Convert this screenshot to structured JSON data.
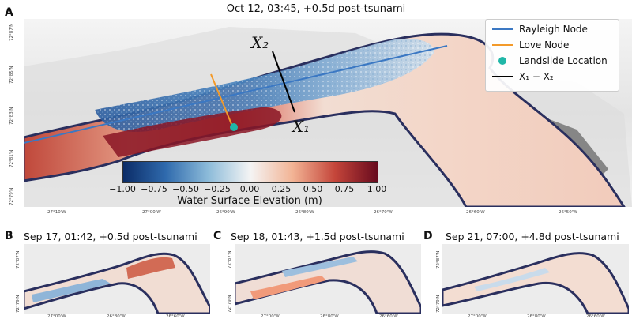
{
  "panel_a": {
    "letter": "A",
    "title": "Oct 12, 03:45, +0.5d post-tsunami",
    "legend": [
      {
        "label": "Rayleigh Node",
        "color": "#3b78c3",
        "kind": "line"
      },
      {
        "label": "Love Node",
        "color": "#f39a2a",
        "kind": "line"
      },
      {
        "label": "Landslide Location",
        "color": "#20b7a8",
        "kind": "dot"
      },
      {
        "label": "X₁ − X₂",
        "color": "#000000",
        "kind": "line"
      }
    ],
    "map_labels": {
      "x1": "X₁",
      "x2": "X₂"
    },
    "x_ticks": [
      "27°10'W",
      "27°00'W",
      "26°90'W",
      "26°80'W",
      "26°70'W",
      "26°60'W",
      "26°50'W"
    ],
    "y_ticks": [
      "72°87'N",
      "72°85'N",
      "72°83'N",
      "72°81'N",
      "72°79'N"
    ],
    "colorbar": {
      "ticks": [
        "−1.00",
        "−0.75",
        "−0.50",
        "−0.25",
        "0.00",
        "0.25",
        "0.50",
        "0.75",
        "1.00"
      ],
      "label": "Water Surface Elevation (m)",
      "colors": [
        "#0b2c67",
        "#2f6aad",
        "#8cbbd9",
        "#f4f4f4",
        "#f2b394",
        "#c4453a",
        "#680a1e"
      ]
    }
  },
  "panel_b": {
    "letter": "B",
    "title": "Sep 17, 01:42, +0.5d post-tsunami",
    "x_ticks": [
      "27°00'W",
      "26°80'W",
      "26°60'W"
    ],
    "y_ticks": [
      "72°87'N",
      "72°79'N"
    ]
  },
  "panel_c": {
    "letter": "C",
    "title": "Sep 18, 01:43, +1.5d post-tsunami",
    "x_ticks": [
      "27°00'W",
      "26°80'W",
      "26°60'W"
    ],
    "y_ticks": [
      "72°87'N",
      "72°79'N"
    ]
  },
  "panel_d": {
    "letter": "D",
    "title": "Sep 21, 07:00, +4.8d post-tsunami",
    "x_ticks": [
      "27°00'W",
      "26°80'W",
      "26°60'W"
    ],
    "y_ticks": [
      "72°87'N",
      "72°79'N"
    ]
  }
}
